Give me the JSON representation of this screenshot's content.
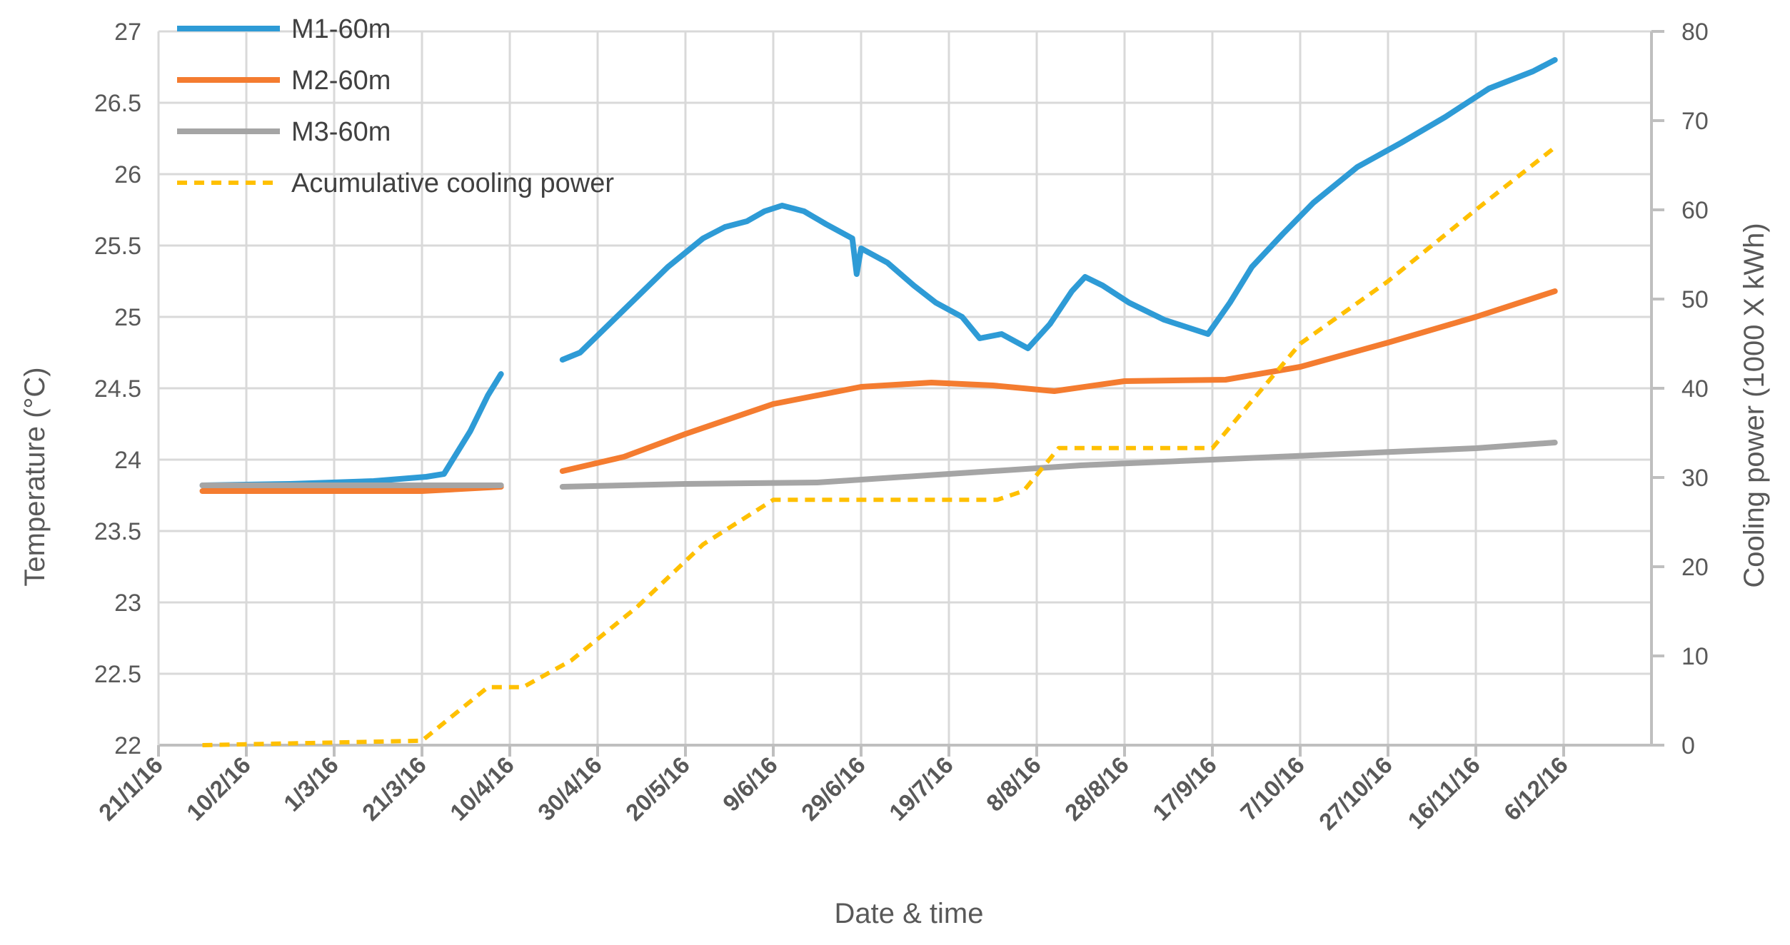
{
  "chart_data": {
    "type": "line",
    "xlabel": "Date & time",
    "ylabel": "Temperature (°C)",
    "y2label": "Cooling power (1000 X kWh)",
    "xlim": [
      "21/1/16",
      "26/12/16"
    ],
    "ylim": [
      22,
      27
    ],
    "y2lim": [
      0,
      80
    ],
    "x_tick_labels": [
      "21/1/16",
      "10/2/16",
      "1/3/16",
      "21/3/16",
      "10/4/16",
      "30/4/16",
      "20/5/16",
      "9/6/16",
      "29/6/16",
      "19/7/16",
      "8/8/16",
      "28/8/16",
      "17/9/16",
      "7/10/16",
      "27/10/16",
      "16/11/16",
      "6/12/16"
    ],
    "y_tick_labels": [
      "22",
      "22.5",
      "23",
      "23.5",
      "24",
      "24.5",
      "25",
      "25.5",
      "26",
      "26.5",
      "27"
    ],
    "y2_tick_labels": [
      "0",
      "10",
      "20",
      "30",
      "40",
      "50",
      "60",
      "70",
      "80"
    ],
    "grid": true,
    "legend_position": "top-left",
    "series": [
      {
        "name": "M1-60m",
        "axis": "left",
        "color": "#2e9bd6",
        "style": "solid",
        "segments": [
          [
            [
              "31/1/16",
              23.82
            ],
            [
              "20/2/16",
              23.83
            ],
            [
              "10/3/16",
              23.85
            ],
            [
              "22/3/16",
              23.88
            ],
            [
              "26/3/16",
              23.9
            ],
            [
              "1/4/16",
              24.2
            ],
            [
              "5/4/16",
              24.45
            ],
            [
              "8/4/16",
              24.6
            ]
          ],
          [
            [
              "22/4/16",
              24.7
            ],
            [
              "26/4/16",
              24.75
            ],
            [
              "6/5/16",
              25.05
            ],
            [
              "16/5/16",
              25.35
            ],
            [
              "24/5/16",
              25.55
            ],
            [
              "29/5/16",
              25.63
            ],
            [
              "3/6/16",
              25.67
            ],
            [
              "7/6/16",
              25.74
            ],
            [
              "11/6/16",
              25.78
            ],
            [
              "16/6/16",
              25.74
            ],
            [
              "21/6/16",
              25.65
            ],
            [
              "27/6/16",
              25.55
            ],
            [
              "28/6/16",
              25.3
            ],
            [
              "29/6/16",
              25.48
            ],
            [
              "5/7/16",
              25.38
            ],
            [
              "11/7/16",
              25.22
            ],
            [
              "16/7/16",
              25.1
            ],
            [
              "22/7/16",
              25.0
            ],
            [
              "26/7/16",
              24.85
            ],
            [
              "31/7/16",
              24.88
            ],
            [
              "6/8/16",
              24.78
            ],
            [
              "11/8/16",
              24.95
            ],
            [
              "16/8/16",
              25.18
            ],
            [
              "19/8/16",
              25.28
            ],
            [
              "23/8/16",
              25.22
            ],
            [
              "29/8/16",
              25.1
            ],
            [
              "6/9/16",
              24.98
            ],
            [
              "16/9/16",
              24.88
            ],
            [
              "21/9/16",
              25.1
            ],
            [
              "26/9/16",
              25.35
            ],
            [
              "3/10/16",
              25.58
            ],
            [
              "10/10/16",
              25.8
            ],
            [
              "20/10/16",
              26.05
            ],
            [
              "30/10/16",
              26.22
            ],
            [
              "9/11/16",
              26.4
            ],
            [
              "19/11/16",
              26.6
            ],
            [
              "29/11/16",
              26.72
            ],
            [
              "4/12/16",
              26.8
            ]
          ]
        ]
      },
      {
        "name": "M2-60m",
        "axis": "left",
        "color": "#f47c30",
        "style": "solid",
        "segments": [
          [
            [
              "31/1/16",
              23.78
            ],
            [
              "21/3/16",
              23.78
            ],
            [
              "8/4/16",
              23.81
            ]
          ],
          [
            [
              "22/4/16",
              23.92
            ],
            [
              "6/5/16",
              24.02
            ],
            [
              "20/5/16",
              24.18
            ],
            [
              "9/6/16",
              24.39
            ],
            [
              "29/6/16",
              24.51
            ],
            [
              "15/7/16",
              24.54
            ],
            [
              "29/7/16",
              24.52
            ],
            [
              "12/8/16",
              24.48
            ],
            [
              "28/8/16",
              24.55
            ],
            [
              "20/9/16",
              24.56
            ],
            [
              "7/10/16",
              24.65
            ],
            [
              "27/10/16",
              24.82
            ],
            [
              "16/11/16",
              25.0
            ],
            [
              "4/12/16",
              25.18
            ]
          ]
        ]
      },
      {
        "name": "M3-60m",
        "axis": "left",
        "color": "#a5a5a5",
        "style": "solid",
        "segments": [
          [
            [
              "31/1/16",
              23.82
            ],
            [
              "8/4/16",
              23.82
            ]
          ],
          [
            [
              "22/4/16",
              23.81
            ],
            [
              "20/5/16",
              23.83
            ],
            [
              "19/6/16",
              23.84
            ],
            [
              "19/7/16",
              23.9
            ],
            [
              "18/8/16",
              23.96
            ],
            [
              "17/9/16",
              24.0
            ],
            [
              "17/10/16",
              24.04
            ],
            [
              "16/11/16",
              24.08
            ],
            [
              "4/12/16",
              24.12
            ]
          ]
        ]
      },
      {
        "name": "Acumulative  cooling power",
        "axis": "right",
        "color": "#ffc000",
        "style": "dashed",
        "segments": [
          [
            [
              "31/1/16",
              0
            ],
            [
              "21/3/16",
              0.5
            ],
            [
              "5/4/16",
              6.5
            ],
            [
              "13/4/16",
              6.5
            ],
            [
              "24/4/16",
              9.5
            ],
            [
              "9/5/16",
              15.5
            ],
            [
              "24/5/16",
              22.5
            ],
            [
              "9/6/16",
              27.5
            ],
            [
              "29/6/16",
              27.5
            ],
            [
              "30/7/16",
              27.5
            ],
            [
              "5/8/16",
              28.5
            ],
            [
              "13/8/16",
              33.3
            ],
            [
              "17/9/16",
              33.3
            ],
            [
              "25/9/16",
              38
            ],
            [
              "7/10/16",
              45
            ],
            [
              "27/10/16",
              52
            ],
            [
              "16/11/16",
              60
            ],
            [
              "4/12/16",
              67
            ]
          ]
        ]
      }
    ]
  }
}
